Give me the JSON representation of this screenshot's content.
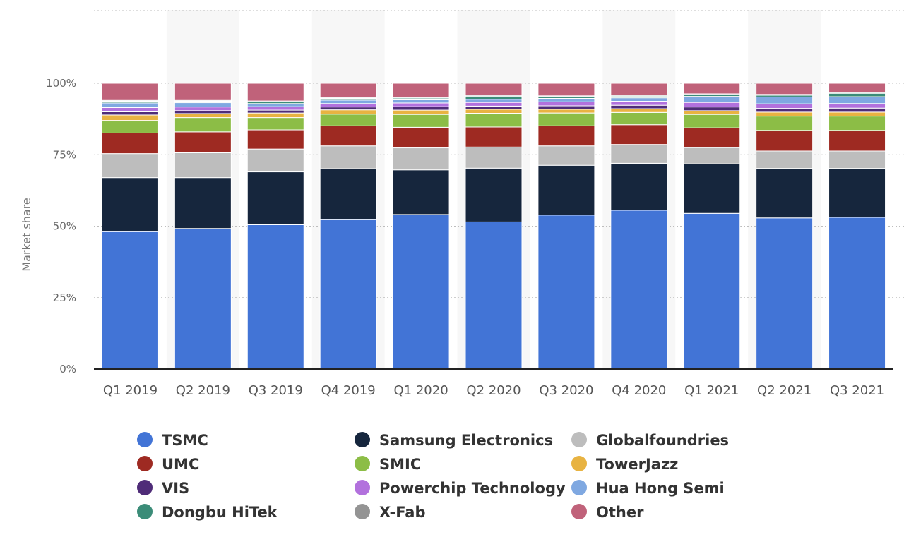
{
  "chart_data": {
    "type": "bar",
    "stacked": true,
    "ylabel": "Market share",
    "ylim": [
      0,
      100
    ],
    "y_ticks": [
      "0%",
      "25%",
      "50%",
      "75%",
      "100%"
    ],
    "grid": true,
    "legend_position": "bottom",
    "categories": [
      "Q1 2019",
      "Q2 2019",
      "Q3 2019",
      "Q4 2019",
      "Q1 2020",
      "Q2 2020",
      "Q3 2020",
      "Q4 2020",
      "Q1 2021",
      "Q2 2021",
      "Q3 2021"
    ],
    "series": [
      {
        "name": "TSMC",
        "color": "#4274d6",
        "values": [
          48.1,
          49.2,
          50.5,
          52.3,
          54.1,
          51.5,
          53.9,
          55.6,
          54.5,
          52.9,
          53.1
        ]
      },
      {
        "name": "Samsung Electronics",
        "color": "#16263d",
        "values": [
          18.9,
          17.8,
          18.5,
          17.8,
          15.6,
          18.8,
          17.4,
          16.4,
          17.3,
          17.3,
          17.1
        ]
      },
      {
        "name": "Globalfoundries",
        "color": "#bdbdbd",
        "values": [
          8.4,
          8.7,
          8.0,
          8.0,
          7.7,
          7.4,
          6.8,
          6.6,
          5.7,
          6.1,
          6.1
        ]
      },
      {
        "name": "UMC",
        "color": "#9e2a22",
        "values": [
          7.2,
          7.3,
          6.7,
          7.0,
          7.2,
          7.0,
          7.0,
          6.9,
          6.9,
          7.2,
          7.2
        ]
      },
      {
        "name": "SMIC",
        "color": "#8cbd46",
        "values": [
          4.4,
          5.0,
          4.3,
          4.1,
          4.5,
          4.8,
          4.5,
          4.3,
          4.7,
          5.0,
          5.0
        ]
      },
      {
        "name": "TowerJazz",
        "color": "#e8b342",
        "values": [
          1.9,
          1.4,
          1.6,
          1.5,
          1.5,
          1.4,
          1.3,
          1.3,
          1.3,
          1.4,
          1.4
        ]
      },
      {
        "name": "VIS",
        "color": "#4f2c78",
        "values": [
          1.1,
          1.0,
          1.0,
          1.0,
          1.2,
          1.1,
          1.2,
          1.2,
          1.3,
          1.3,
          1.4
        ]
      },
      {
        "name": "Powerchip Technology",
        "color": "#b271dd",
        "values": [
          1.5,
          1.3,
          1.2,
          1.2,
          1.3,
          1.3,
          1.4,
          1.4,
          1.6,
          1.6,
          1.6
        ]
      },
      {
        "name": "Hua Hong Semi",
        "color": "#7fa8e1",
        "values": [
          1.6,
          1.5,
          1.1,
          1.2,
          1.1,
          1.1,
          1.2,
          1.2,
          2.1,
          2.4,
          2.4
        ]
      },
      {
        "name": "Dongbu HiTek",
        "color": "#3b8c78",
        "values": [
          0.6,
          0.5,
          0.6,
          0.6,
          0.6,
          1.1,
          0.6,
          0.6,
          0.6,
          0.6,
          1.2
        ]
      },
      {
        "name": "X-Fab",
        "color": "#949494",
        "values": [
          0.3,
          0.3,
          0.3,
          0.3,
          0.3,
          0.3,
          0.3,
          0.3,
          0.3,
          0.3,
          0.3
        ]
      },
      {
        "name": "Other",
        "color": "#c0627a",
        "values": [
          6.0,
          6.0,
          6.2,
          5.0,
          4.9,
          4.2,
          4.4,
          4.2,
          3.7,
          3.9,
          3.2
        ]
      }
    ]
  }
}
